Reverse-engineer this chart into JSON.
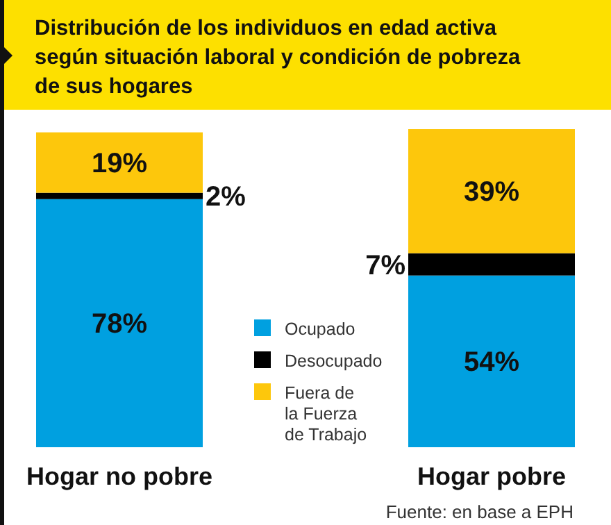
{
  "chart_data": {
    "type": "bar",
    "stacked": true,
    "title": "Distribución de los individuos en edad activa según situación laboral y condición de pobreza de sus hogares",
    "categories": [
      "Hogar no pobre",
      "Hogar pobre"
    ],
    "series": [
      {
        "name": "Ocupado",
        "color": "#00a0e0",
        "values": [
          78,
          54
        ],
        "value_labels": [
          "78%",
          "54%"
        ]
      },
      {
        "name": "Desocupado",
        "color": "#000000",
        "values": [
          2,
          7
        ],
        "value_labels": [
          "2%",
          "7%"
        ]
      },
      {
        "name": "Fuera de la Fuerza de Trabajo",
        "color": "#fdc70c",
        "values": [
          19,
          39
        ],
        "value_labels": [
          "19%",
          "39%"
        ]
      }
    ],
    "legend": "bottom",
    "annotations": [
      "Fuente: en base a EPH"
    ]
  }
}
